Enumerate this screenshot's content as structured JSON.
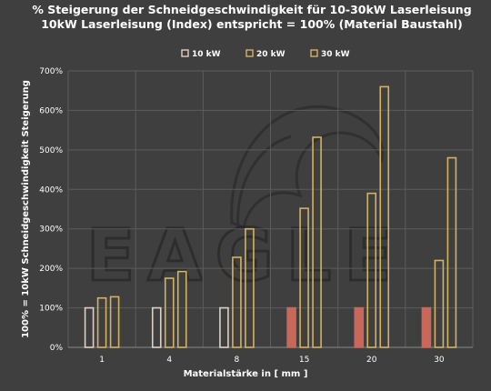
{
  "chart_data": {
    "type": "bar",
    "title_line1": "%  Steigerung der Schneidgeschwindigkeit für 10-30kW Laserleisung",
    "title_line2": "10kW Laserleisung (Index) entspricht = 100%  (Material Baustahl)",
    "xlabel": "Materialstärke in [ mm ]",
    "ylabel": "100% = 10kW   Schneidgeschwindigkeit Steigerung",
    "categories": [
      "1",
      "4",
      "8",
      "15",
      "20",
      "30"
    ],
    "ylim": [
      0,
      700
    ],
    "yticks": [
      0,
      100,
      200,
      300,
      400,
      500,
      600,
      700
    ],
    "ytick_suffix": "%",
    "grid": true,
    "legend_position": "top-right",
    "series": [
      {
        "name": "10 kW",
        "values": [
          100,
          100,
          100,
          100,
          100,
          100
        ],
        "color": "#e0d0c4",
        "colors": [
          "#e0d0c4",
          "#e0d0c4",
          "#e0d0c4",
          "#c8685a",
          "#c8685a",
          "#c8685a"
        ],
        "filled": [
          false,
          false,
          false,
          true,
          true,
          true
        ]
      },
      {
        "name": "20 kW",
        "values": [
          125,
          175,
          228,
          352,
          390,
          220
        ],
        "color": "#d4b262"
      },
      {
        "name": "30 kW",
        "values": [
          128,
          192,
          300,
          532,
          660,
          480
        ],
        "color": "#d4b262"
      }
    ],
    "watermark": "EAGLE"
  }
}
